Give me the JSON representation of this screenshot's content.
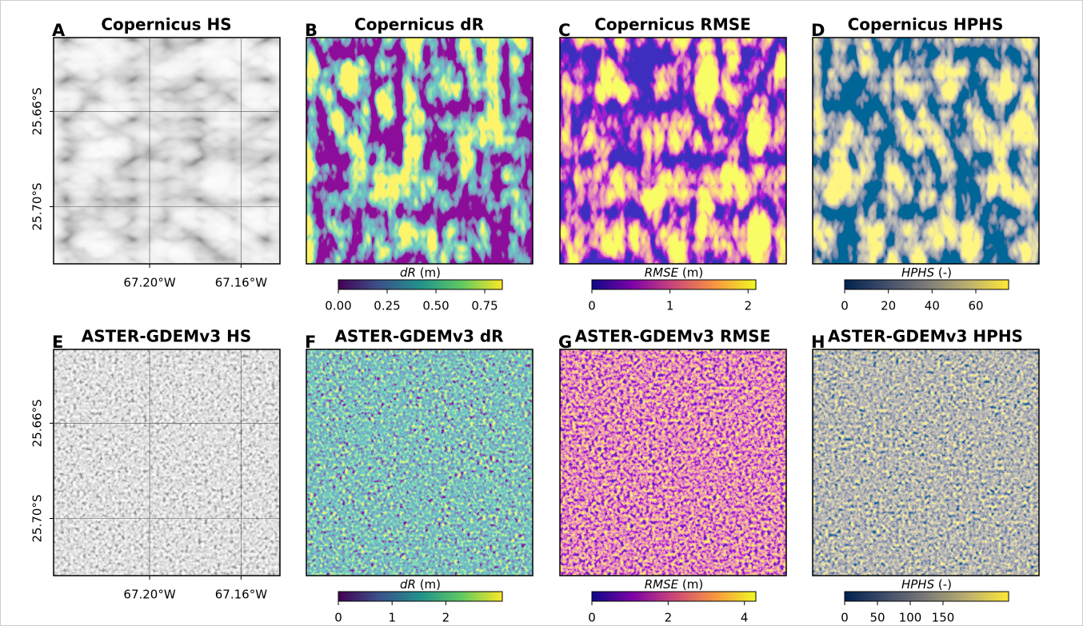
{
  "panels": [
    {
      "letter": "A",
      "title": "Copernicus HS"
    },
    {
      "letter": "B",
      "title": "Copernicus dR",
      "colorbar": {
        "symbol": "dR",
        "unit": "(m)",
        "lim": [
          0,
          0.84
        ],
        "ticks": [
          {
            "value": 0,
            "label": "0.00"
          },
          0.25,
          {
            "value": 0.5,
            "label": "0.50"
          },
          0.75
        ]
      }
    },
    {
      "letter": "C",
      "title": "Copernicus RMSE",
      "colorbar": {
        "symbol": "RMSE",
        "unit": "(m)",
        "lim": [
          0,
          2.1
        ],
        "ticks": [
          0,
          1,
          2
        ]
      }
    },
    {
      "letter": "D",
      "title": "Copernicus HPHS",
      "colorbar": {
        "symbol": "HPHS",
        "unit": "(-)",
        "lim": [
          0,
          75
        ],
        "ticks": [
          0,
          20,
          40,
          60
        ]
      }
    },
    {
      "letter": "E",
      "title": "ASTER-GDEMv3 HS"
    },
    {
      "letter": "F",
      "title": "ASTER-GDEMv3 dR",
      "colorbar": {
        "symbol": "dR",
        "unit": "(m)",
        "lim": [
          0,
          3.05
        ],
        "ticks": [
          0,
          1,
          2
        ]
      }
    },
    {
      "letter": "G",
      "title": "ASTER-GDEMv3 RMSE",
      "colorbar": {
        "symbol": "RMSE",
        "unit": "(m)",
        "lim": [
          0,
          4.3
        ],
        "ticks": [
          0,
          2,
          4
        ]
      }
    },
    {
      "letter": "H",
      "title": "ASTER-GDEMv3 HPHS",
      "colorbar": {
        "symbol": "HPHS",
        "unit": "(-)",
        "lim": [
          0,
          250
        ],
        "ticks": [
          0,
          50,
          100,
          150
        ]
      }
    }
  ],
  "map_axes": {
    "xlim": [
      -67.242,
      -67.143
    ],
    "ylim": [
      -25.629,
      -25.724
    ],
    "xticks": [
      {
        "value": -67.2,
        "label": "67.20°W"
      },
      {
        "value": -67.16,
        "label": "67.16°W"
      }
    ],
    "yticks": [
      {
        "value": -25.66,
        "label": "25.66°S"
      },
      {
        "value": -25.7,
        "label": "25.70°S"
      }
    ]
  }
}
